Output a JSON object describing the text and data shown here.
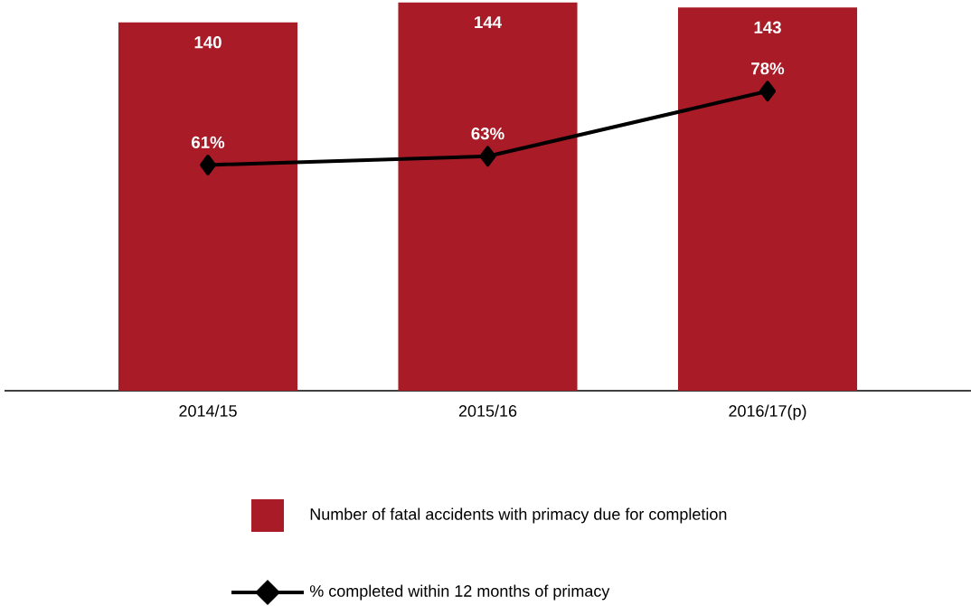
{
  "chart_data": {
    "type": "bar",
    "categories": [
      "2014/15",
      "2015/16",
      "2016/17(p)"
    ],
    "series": [
      {
        "name": "Number of fatal accidents with primacy due for completion",
        "color": "#a91b27",
        "values": [
          140,
          144,
          143
        ],
        "value_labels": [
          "140",
          "144",
          "143"
        ]
      },
      {
        "name": "% completed within 12 months of primacy",
        "type": "line",
        "axis": "y2",
        "color": "#000000",
        "values": [
          61,
          63,
          78
        ],
        "value_labels": [
          "61%",
          "63%",
          "78%"
        ],
        "marker": "diamond",
        "line_style": "solid"
      }
    ],
    "ylim": [
      66,
      144.5
    ],
    "y2lim": [
      9,
      99
    ],
    "legend": "bottom",
    "tick_labels": "x"
  }
}
